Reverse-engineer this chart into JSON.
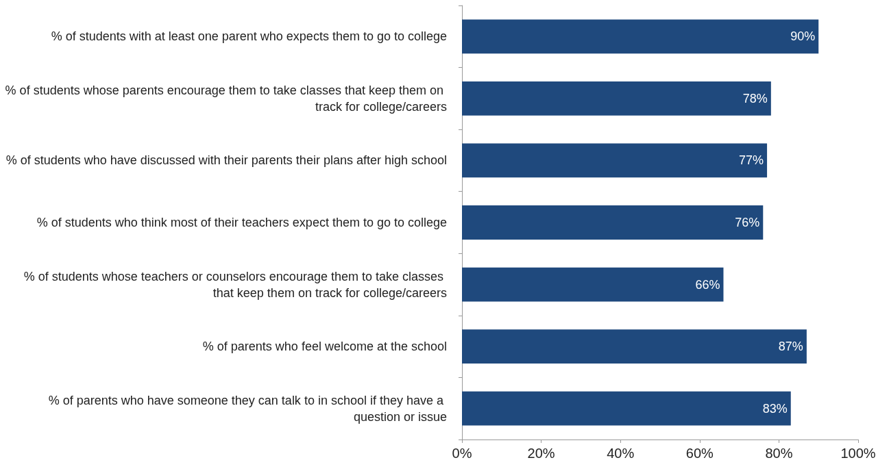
{
  "chart_data": {
    "type": "bar",
    "orientation": "horizontal",
    "categories": [
      "% of students with at least one parent who expects them to go to college",
      "% of students whose parents encourage them to take classes that keep them on track for college/careers",
      "% of students who have discussed with their parents their plans after high school",
      "% of students who think most of their teachers expect them to go to college",
      "% of students whose teachers or counselors encourage them to take classes that keep them on track for college/careers",
      "% of parents who feel welcome at the school",
      "% of parents who have someone they can talk to in school if they have a question or issue"
    ],
    "values": [
      90,
      78,
      77,
      76,
      66,
      87,
      83
    ],
    "value_labels": [
      "90%",
      "78%",
      "77%",
      "76%",
      "66%",
      "87%",
      "83%"
    ],
    "color": "#1f497d",
    "xlim": [
      0,
      100
    ],
    "xticks": [
      {
        "value": 0,
        "label": "0%"
      },
      {
        "value": 20,
        "label": "20%"
      },
      {
        "value": 40,
        "label": "40%"
      },
      {
        "value": 60,
        "label": "60%"
      },
      {
        "value": 80,
        "label": "80%"
      },
      {
        "value": 100,
        "label": "100%"
      }
    ],
    "grid": false
  }
}
